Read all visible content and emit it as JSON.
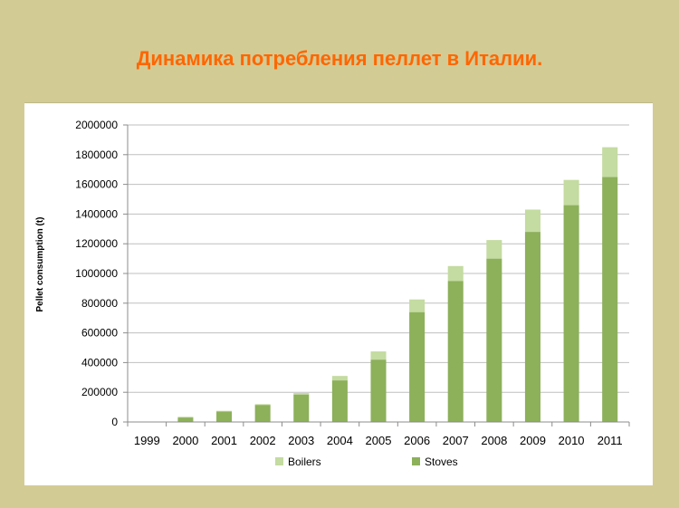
{
  "slide": {
    "title": "Динамика потребления пеллет в Италии.",
    "title_color": "#ff6600",
    "background_color": "#d3cb94"
  },
  "chart_data": {
    "type": "bar",
    "stacked": true,
    "title": "",
    "xlabel": "",
    "ylabel": "Pellet consumption (t)",
    "categories": [
      "1999",
      "2000",
      "2001",
      "2002",
      "2003",
      "2004",
      "2005",
      "2006",
      "2007",
      "2008",
      "2009",
      "2010",
      "2011"
    ],
    "series": [
      {
        "name": "Stoves",
        "color": "#8db05b",
        "values": [
          0,
          30000,
          70000,
          115000,
          185000,
          280000,
          420000,
          740000,
          950000,
          1100000,
          1280000,
          1460000,
          1650000
        ]
      },
      {
        "name": "Boilers",
        "color": "#c4dba1",
        "values": [
          0,
          5000,
          5000,
          5000,
          10000,
          30000,
          55000,
          85000,
          100000,
          125000,
          150000,
          170000,
          200000
        ]
      }
    ],
    "ylim": [
      0,
      2000000
    ],
    "yticks": [
      "0",
      "200000",
      "400000",
      "600000",
      "800000",
      "1000000",
      "1200000",
      "1400000",
      "1600000",
      "1800000",
      "2000000"
    ],
    "grid": true,
    "legend": {
      "position": "bottom",
      "order": [
        "Boilers",
        "Stoves"
      ]
    }
  }
}
